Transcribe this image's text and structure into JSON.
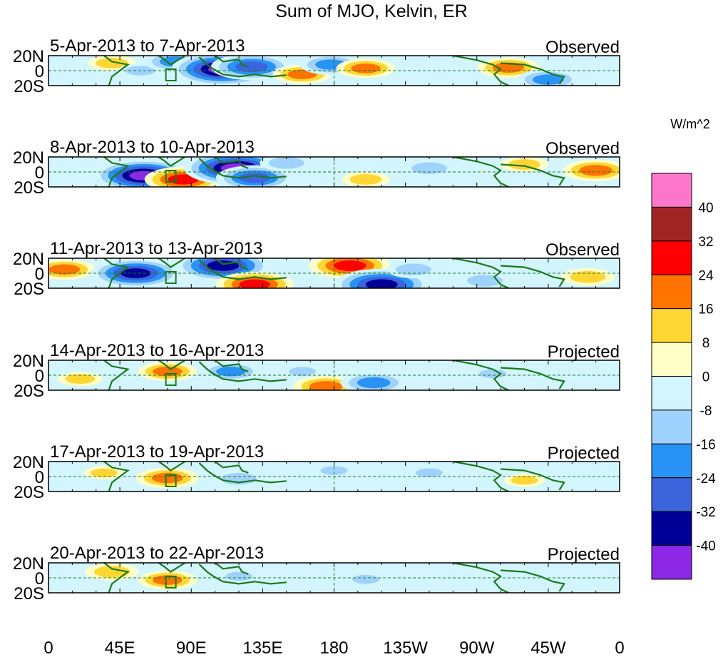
{
  "chart_data": {
    "type": "heatmap",
    "title": "Sum of MJO, Kelvin, ER",
    "units": "W/m^2",
    "lat_ticks": [
      "20N",
      "0",
      "20S"
    ],
    "lon_ticks": [
      "0",
      "45E",
      "90E",
      "135E",
      "180",
      "135W",
      "90W",
      "45W",
      "0"
    ],
    "lat_range": [
      -20,
      20
    ],
    "lon_range": [
      0,
      360
    ],
    "colorbar": {
      "levels": [
        "40",
        "32",
        "24",
        "16",
        "8",
        "0",
        "-8",
        "-16",
        "-24",
        "-32",
        "-40"
      ],
      "colors": [
        "#ff77cc",
        "#a12424",
        "#ff0000",
        "#ff7300",
        "#ffd633",
        "#ffffc8",
        "#d2f5ff",
        "#a0d2ff",
        "#2892f5",
        "#3c64dc",
        "#000096",
        "#8c28e6"
      ]
    },
    "panels": [
      {
        "period": "5-Apr-2013 to 7-Apr-2013",
        "status": "Observed",
        "features": [
          {
            "lon": 40,
            "lat": 10,
            "value": 12
          },
          {
            "lon": 58,
            "lat": 0,
            "value": -10
          },
          {
            "lon": 80,
            "lat": 12,
            "value": -20
          },
          {
            "lon": 110,
            "lat": 2,
            "value": -42
          },
          {
            "lon": 128,
            "lat": 5,
            "value": -30
          },
          {
            "lon": 160,
            "lat": -5,
            "value": 18
          },
          {
            "lon": 178,
            "lat": 8,
            "value": -20
          },
          {
            "lon": 200,
            "lat": 3,
            "value": 18
          },
          {
            "lon": 290,
            "lat": 4,
            "value": 20
          },
          {
            "lon": 315,
            "lat": -12,
            "value": -20
          }
        ]
      },
      {
        "period": "8-Apr-2013 to 10-Apr-2013",
        "status": "Observed",
        "features": [
          {
            "lon": 60,
            "lat": -5,
            "value": -40
          },
          {
            "lon": 85,
            "lat": -10,
            "value": 28
          },
          {
            "lon": 118,
            "lat": 5,
            "value": -42
          },
          {
            "lon": 130,
            "lat": -8,
            "value": -28
          },
          {
            "lon": 150,
            "lat": 12,
            "value": -15
          },
          {
            "lon": 200,
            "lat": -10,
            "value": 12
          },
          {
            "lon": 240,
            "lat": 5,
            "value": -15
          },
          {
            "lon": 300,
            "lat": 10,
            "value": 12
          },
          {
            "lon": 345,
            "lat": 2,
            "value": 22
          }
        ]
      },
      {
        "period": "11-Apr-2013 to 13-Apr-2013",
        "status": "Observed",
        "features": [
          {
            "lon": 10,
            "lat": 5,
            "value": 20
          },
          {
            "lon": 55,
            "lat": 0,
            "value": -35
          },
          {
            "lon": 110,
            "lat": 10,
            "value": -38
          },
          {
            "lon": 130,
            "lat": -15,
            "value": 28
          },
          {
            "lon": 190,
            "lat": 10,
            "value": 30
          },
          {
            "lon": 210,
            "lat": -15,
            "value": -38
          },
          {
            "lon": 230,
            "lat": 5,
            "value": -15
          },
          {
            "lon": 275,
            "lat": -10,
            "value": -15
          },
          {
            "lon": 340,
            "lat": -5,
            "value": 15
          }
        ]
      },
      {
        "period": "14-Apr-2013 to 16-Apr-2013",
        "status": "Projected",
        "features": [
          {
            "lon": 75,
            "lat": 5,
            "value": 18
          },
          {
            "lon": 115,
            "lat": 5,
            "value": -18
          },
          {
            "lon": 175,
            "lat": -15,
            "value": 22
          },
          {
            "lon": 205,
            "lat": -10,
            "value": -22
          },
          {
            "lon": 160,
            "lat": 5,
            "value": -8
          },
          {
            "lon": 280,
            "lat": 2,
            "value": -8
          },
          {
            "lon": 20,
            "lat": -5,
            "value": 10
          }
        ]
      },
      {
        "period": "17-Apr-2013 to 19-Apr-2013",
        "status": "Projected",
        "features": [
          {
            "lon": 75,
            "lat": -2,
            "value": 20
          },
          {
            "lon": 120,
            "lat": -3,
            "value": -15
          },
          {
            "lon": 180,
            "lat": 8,
            "value": -8
          },
          {
            "lon": 240,
            "lat": 5,
            "value": -8
          },
          {
            "lon": 35,
            "lat": 5,
            "value": 8
          },
          {
            "lon": 300,
            "lat": -5,
            "value": 8
          }
        ]
      },
      {
        "period": "20-Apr-2013 to 22-Apr-2013",
        "status": "Projected",
        "features": [
          {
            "lon": 75,
            "lat": -3,
            "value": 18
          },
          {
            "lon": 40,
            "lat": 8,
            "value": 15
          },
          {
            "lon": 120,
            "lat": 2,
            "value": -8
          },
          {
            "lon": 200,
            "lat": -2,
            "value": -8
          },
          {
            "lon": 270,
            "lat": 5,
            "value": -6
          }
        ]
      }
    ]
  }
}
